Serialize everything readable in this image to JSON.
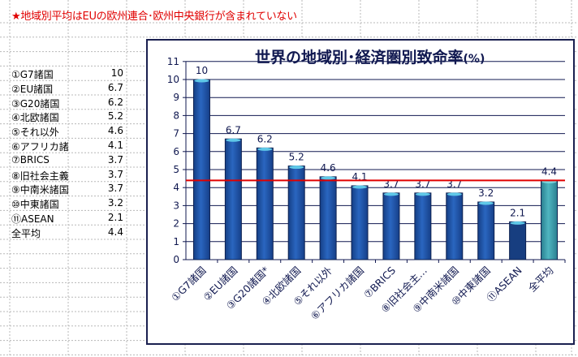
{
  "note": "★地域別平均はEUの欧州連合･欧州中央銀行が含まれていない",
  "table": [
    {
      "label": "①G7諸国",
      "value": "10"
    },
    {
      "label": "②EU諸国",
      "value": "6.7"
    },
    {
      "label": "③G20諸国",
      "value": "6.2"
    },
    {
      "label": "④北欧諸国",
      "value": "5.2"
    },
    {
      "label": "⑤それ以外",
      "value": "4.6"
    },
    {
      "label": "⑥アフリカ諸国",
      "value": "4.1"
    },
    {
      "label": "⑦BRICS",
      "value": "3.7"
    },
    {
      "label": "⑧旧社会主義",
      "value": "3.7"
    },
    {
      "label": "⑨中南米諸国",
      "value": "3.7"
    },
    {
      "label": "⑩中東諸国",
      "value": "3.2"
    },
    {
      "label": "⑪ASEAN",
      "value": "2.1"
    },
    {
      "label": "全平均",
      "value": "4.4"
    }
  ],
  "chart_data": {
    "type": "bar",
    "title": "世界の地域別･経済圏別致命率",
    "title_unit": "(%)",
    "categories": [
      "①G7諸国",
      "②EU諸国",
      "③G20諸国*",
      "④北欧諸国",
      "⑤それ以外",
      "⑥アフリカ諸国",
      "⑦BRICS",
      "⑧旧社会主…",
      "⑨中南米諸国",
      "⑩中東諸国",
      "⑪ASEAN",
      "全平均"
    ],
    "values": [
      10,
      6.7,
      6.2,
      5.2,
      4.6,
      4.1,
      3.7,
      3.7,
      3.7,
      3.2,
      2.1,
      4.4
    ],
    "data_labels": [
      "10",
      "6.7",
      "6.2",
      "5.2",
      "4.6",
      "4.1",
      "3.7",
      "3.7",
      "3.7",
      "3.2",
      "2.1",
      "4.4"
    ],
    "yticks": [
      0,
      1,
      2,
      3,
      4,
      5,
      6,
      7,
      8,
      9,
      10,
      11
    ],
    "ylim": [
      0,
      11
    ],
    "grid": true,
    "reference_line": 4.4,
    "colors": {
      "bar": "#1f56a8",
      "highlight": "#3a9aa8",
      "last_dark": "#173e80",
      "reference": "#e00000",
      "axis": "#101850"
    }
  }
}
